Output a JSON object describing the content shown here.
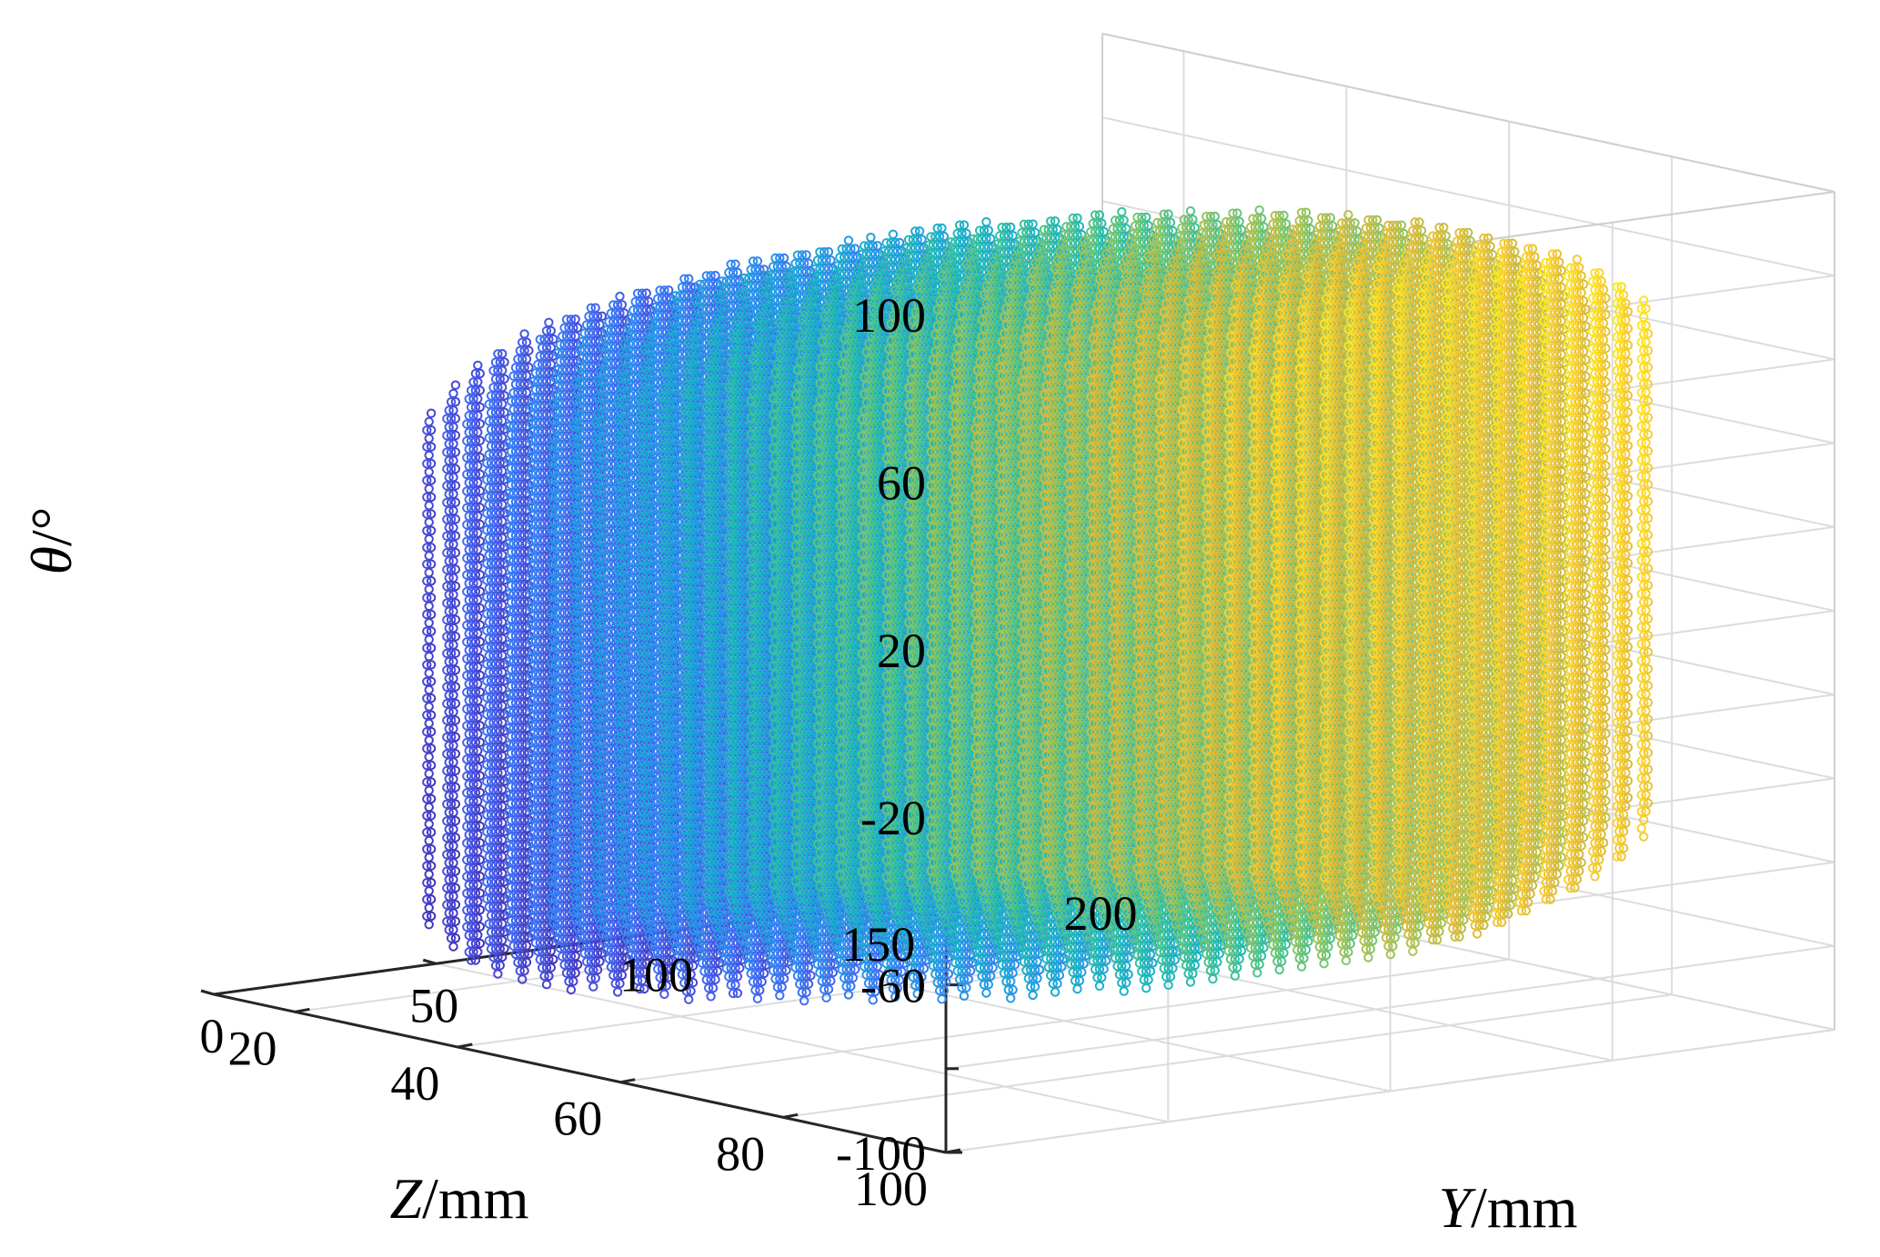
{
  "chart_data": {
    "type": "scatter3d",
    "title": "",
    "xlabel": {
      "var": "Y",
      "unit": "/mm"
    },
    "ylabel": {
      "var": "Z",
      "unit": "/mm"
    },
    "zlabel": {
      "var": "θ",
      "unit": "/°"
    },
    "xlim": [
      0,
      200
    ],
    "ylim": [
      10,
      100
    ],
    "zlim": [
      -100,
      100
    ],
    "x_ticks": [
      0,
      50,
      100,
      150,
      200
    ],
    "y_ticks": [
      20,
      40,
      60,
      80,
      100
    ],
    "z_ticks": [
      -100,
      -60,
      -20,
      20,
      60,
      100
    ],
    "z_minor_ticks": [
      -80,
      -40,
      0,
      40,
      80
    ],
    "grid": true,
    "marker": "circle-open",
    "colormap": "parula",
    "colormap_stops": [
      "#3e26a8",
      "#4746d1",
      "#4268f3",
      "#2d8cf0",
      "#1ba8d5",
      "#21bcb0",
      "#5bc580",
      "#a4c255",
      "#dcb93b",
      "#fcd22e",
      "#f9fb15"
    ],
    "color_by": "Y",
    "point_cloud": {
      "description_rows": "sampled workspace points",
      "y_step": 5,
      "z_step": 3,
      "theta_step": 4
    }
  }
}
